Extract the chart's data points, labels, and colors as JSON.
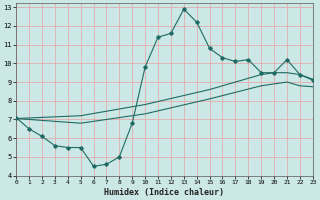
{
  "xlabel": "Humidex (Indice chaleur)",
  "xlim": [
    0,
    23
  ],
  "ylim": [
    4,
    13.2
  ],
  "yticks": [
    4,
    5,
    6,
    7,
    8,
    9,
    10,
    11,
    12,
    13
  ],
  "xticks": [
    0,
    1,
    2,
    3,
    4,
    5,
    6,
    7,
    8,
    9,
    10,
    11,
    12,
    13,
    14,
    15,
    16,
    17,
    18,
    19,
    20,
    21,
    22,
    23
  ],
  "bg_color": "#cce8e6",
  "line_color": "#1e6b64",
  "grid_color_v": "#e8a0a0",
  "grid_color_h": "#e8a0a0",
  "curve1_x": [
    0,
    1,
    2,
    3,
    4,
    5,
    6,
    7,
    8,
    9,
    10,
    11,
    12,
    13,
    14,
    15,
    16,
    17,
    18,
    19,
    20,
    21,
    22,
    23
  ],
  "curve1_y": [
    7.1,
    6.5,
    6.1,
    5.6,
    5.5,
    5.5,
    4.5,
    4.6,
    5.0,
    6.8,
    9.8,
    11.4,
    11.6,
    12.9,
    12.2,
    10.8,
    10.3,
    10.1,
    10.2,
    9.5,
    9.5,
    10.2,
    9.4,
    9.1
  ],
  "curve2_x": [
    0,
    5,
    10,
    15,
    19,
    20,
    21,
    22,
    23
  ],
  "curve2_y": [
    7.05,
    7.2,
    7.8,
    8.6,
    9.4,
    9.5,
    9.5,
    9.4,
    9.15
  ],
  "curve3_x": [
    0,
    5,
    10,
    15,
    19,
    20,
    21,
    22,
    23
  ],
  "curve3_y": [
    7.05,
    6.8,
    7.3,
    8.1,
    8.8,
    8.9,
    9.0,
    8.8,
    8.75
  ]
}
